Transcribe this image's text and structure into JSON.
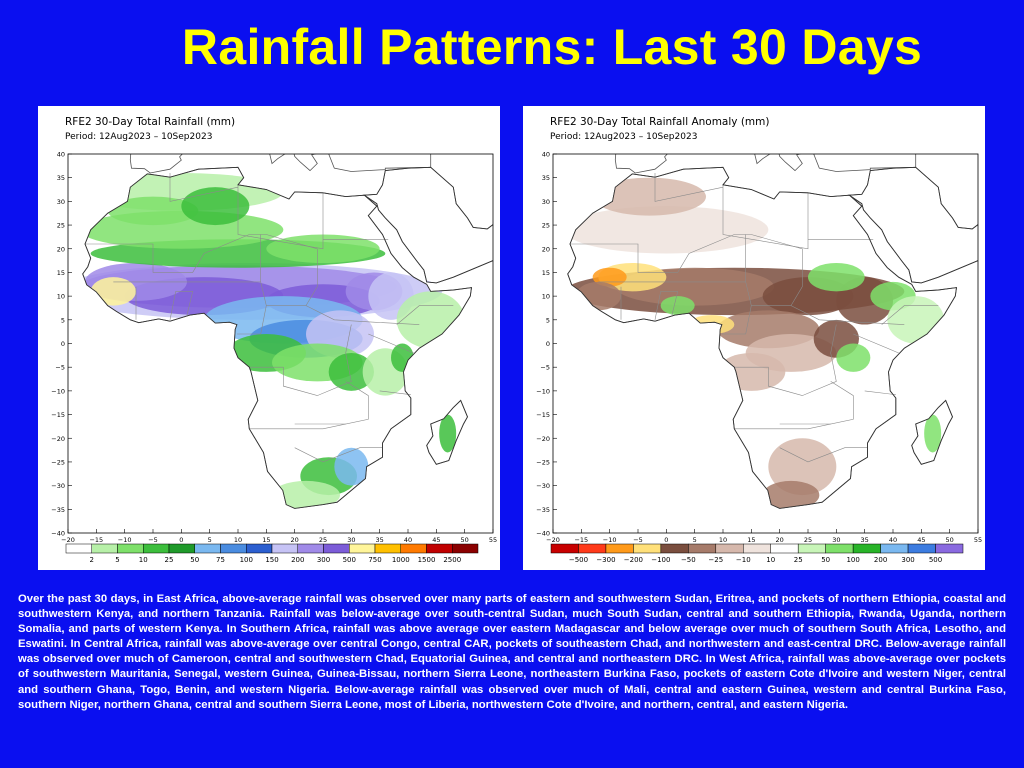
{
  "slide": {
    "title": "Rainfall Patterns: Last 30 Days",
    "description": "Over the past 30 days, in East Africa, above-average rainfall was observed over many parts of eastern and southwestern Sudan, Eritrea, and pockets of northern Ethiopia, coastal and southwestern Kenya, and northern Tanzania. Rainfall was below-average over south-central Sudan, much South Sudan, central and southern Ethiopia, Rwanda, Uganda, northern Somalia, and parts of western Kenya. In Southern Africa, rainfall was above average over eastern Madagascar and below average over much of southern South Africa, Lesotho, and Eswatini. In Central Africa, rainfall was above-average over central Congo, central CAR, pockets of southeastern Chad, and northwestern and east-central DRC. Below-average rainfall was observed over much of Cameroon, central and southwestern Chad, Equatorial Guinea, and central and northeastern DRC. In West Africa, rainfall was above-average over pockets of southwestern Mauritania, Senegal, western Guinea, Guinea-Bissau, northern Sierra Leone, northeastern Burkina Faso, pockets of eastern Cote d'Ivoire and western Niger, central and southern Ghana, Togo, Benin, and western Nigeria. Below-average rainfall was observed over much of Mali, central and eastern Guinea, western and central Burkina Faso, southern Niger, northern Ghana, central and southern Sierra Leone, most of Liberia, northwestern Cote d'Ivoire, and northern, central, and eastern Nigeria."
  },
  "maps": {
    "common": {
      "lon_labels": [
        "−20",
        "−15",
        "−10",
        "−5",
        "0",
        "5",
        "10",
        "15",
        "20",
        "25",
        "30",
        "35",
        "40",
        "45",
        "50",
        "55"
      ],
      "lat_labels": [
        "40",
        "35",
        "30",
        "25",
        "20",
        "15",
        "10",
        "5",
        "0",
        "−5",
        "−10",
        "−15",
        "−20",
        "−25",
        "−30",
        "−35",
        "−40"
      ]
    },
    "left": {
      "title": "RFE2 30-Day Total Rainfall (mm)",
      "period": "Period: 12Aug2023 – 10Sep2023",
      "legend_labels": [
        "2",
        "5",
        "10",
        "25",
        "50",
        "75",
        "100",
        "150",
        "200",
        "300",
        "500",
        "750",
        "1000",
        "1500",
        "2500"
      ],
      "legend_colors": [
        "#ffffff",
        "#b7f0a8",
        "#7ee06a",
        "#3cbe3c",
        "#1f9a2a",
        "#7ab8f0",
        "#4a8ce0",
        "#2c5fd0",
        "#c6c3f5",
        "#a08ae8",
        "#7c5cd8",
        "#fff59a",
        "#ffc000",
        "#ff7a00",
        "#c00000",
        "#8a0000"
      ]
    },
    "right": {
      "title": "RFE2 30-Day Total Rainfall Anomaly (mm)",
      "period": "Period: 12Aug2023 – 10Sep2023",
      "legend_labels": [
        "−500",
        "−300",
        "−200",
        "−100",
        "−50",
        "−25",
        "−10",
        "10",
        "25",
        "50",
        "100",
        "200",
        "300",
        "500"
      ],
      "legend_colors": [
        "#c80000",
        "#ff3a1a",
        "#ff9a1a",
        "#ffe07a",
        "#7a4e3e",
        "#a67b6a",
        "#d6b8ac",
        "#efe3dd",
        "#ffffff",
        "#c8f5b8",
        "#7ee06a",
        "#28b428",
        "#7ab8f0",
        "#3c7ce0",
        "#8a6ae0"
      ]
    },
    "colors": {
      "background": "#0a0ff0",
      "title": "#ffff00"
    }
  }
}
